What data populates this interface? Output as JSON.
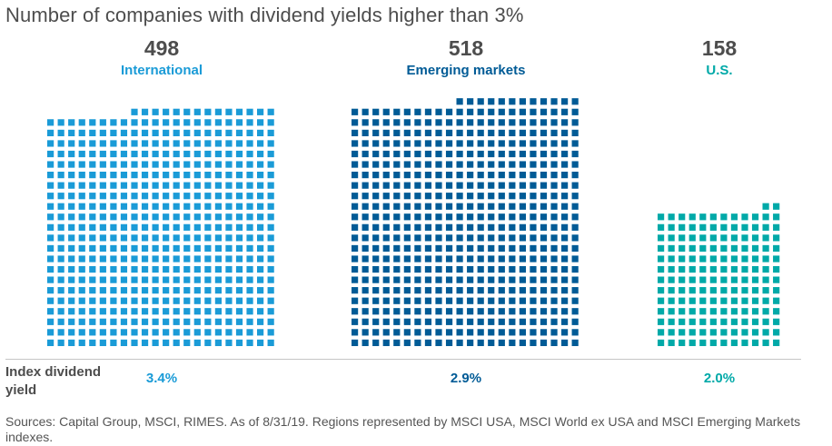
{
  "chart_data": {
    "type": "waffle",
    "title": "Number of companies with dividend yields higher than 3%",
    "unit": "each square = 1 company",
    "series": [
      {
        "name": "International",
        "count": 498,
        "count_label": "498",
        "yield": 3.4,
        "yield_label": "3.4%",
        "color": "#1a9bd7",
        "columns": 22
      },
      {
        "name": "Emerging markets",
        "count": 518,
        "count_label": "518",
        "yield": 2.9,
        "yield_label": "2.9%",
        "color": "#005b96",
        "columns": 22
      },
      {
        "name": "U.S.",
        "count": 158,
        "count_label": "158",
        "yield": 2.0,
        "yield_label": "2.0%",
        "color": "#00a9a8",
        "columns": 12
      }
    ],
    "row_label": "Index dividend yield"
  },
  "footer": "Sources: Capital Group, MSCI, RIMES. As of 8/31/19. Regions represented by MSCI USA, MSCI World ex USA and MSCI Emerging Markets indexes."
}
